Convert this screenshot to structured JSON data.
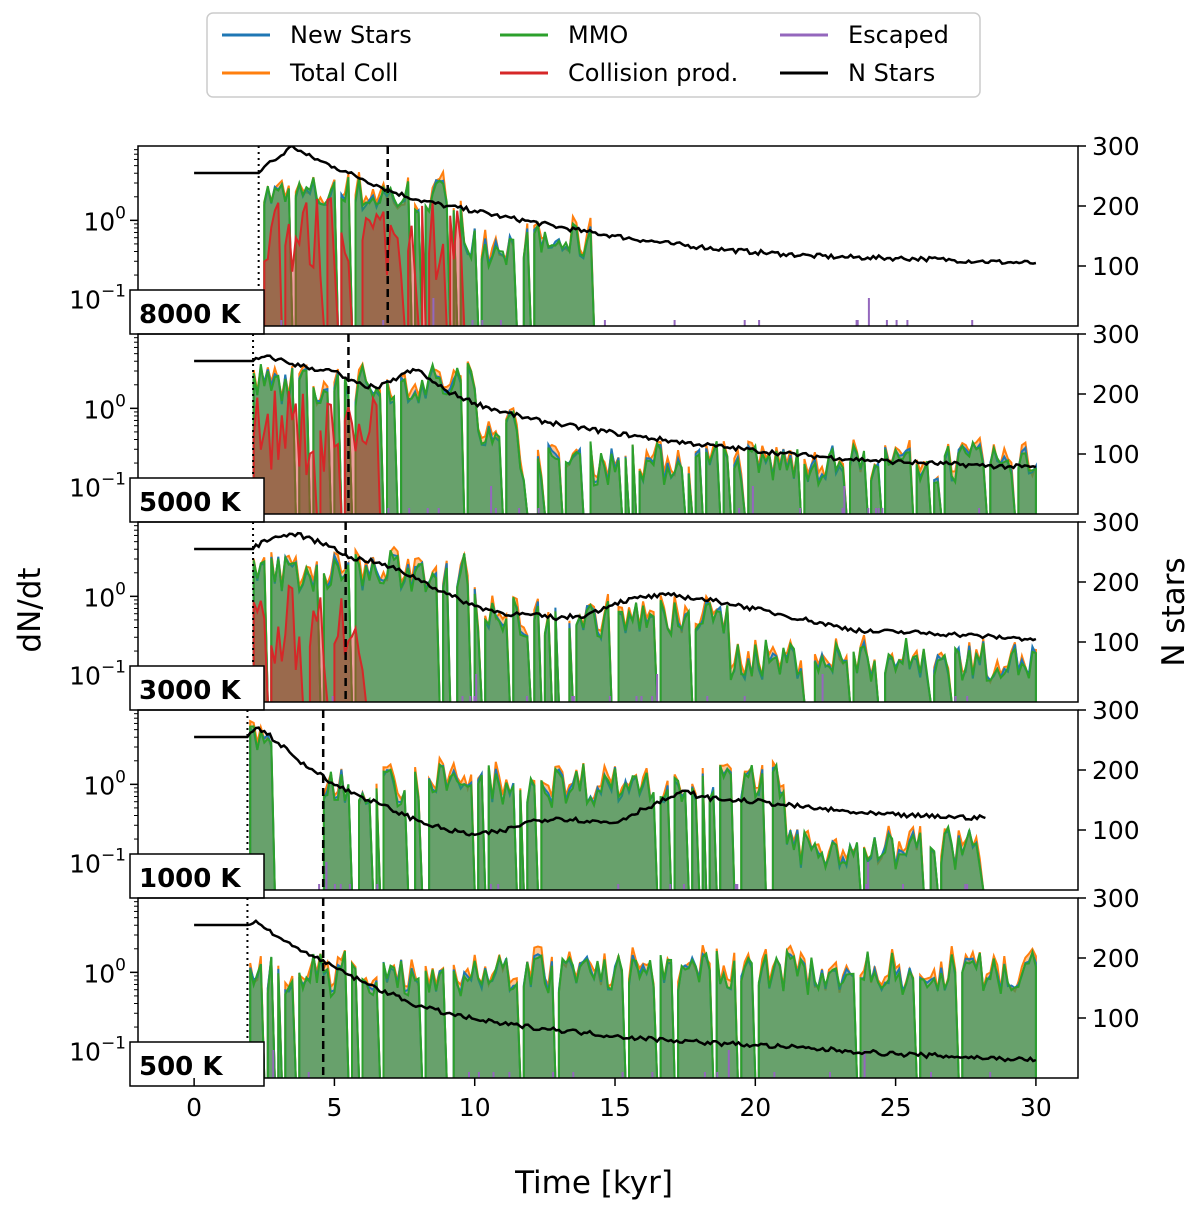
{
  "chart_data": {
    "type": "area",
    "xlabel": "Time [kyr]",
    "ylabel_left": "dN/dt",
    "ylabel_right": "N stars",
    "xlim": [
      -2,
      31.5
    ],
    "xticks": [
      0,
      5,
      10,
      15,
      20,
      25,
      30
    ],
    "left_scale": "log",
    "left_ticks": [
      "10^{-1}",
      "10^{0}"
    ],
    "right_ylim": [
      0,
      300
    ],
    "right_ticks": [
      100,
      200,
      300
    ],
    "legend": {
      "placement": "top-center, above plots",
      "entries": [
        {
          "name": "New Stars",
          "color": "#1f77b4"
        },
        {
          "name": "Total Coll",
          "color": "#ff7f0e"
        },
        {
          "name": "MMO",
          "color": "#2ca02c"
        },
        {
          "name": "Collision prod.",
          "color": "#d62728"
        },
        {
          "name": "Escaped",
          "color": "#9467bd"
        },
        {
          "name": "N Stars",
          "color": "#000000"
        }
      ]
    },
    "panels": [
      {
        "label": "8000 K",
        "t_dotted": 2.3,
        "t_dashed": 6.9,
        "n_stars": {
          "x": [
            0,
            2.3,
            2.6,
            3.0,
            3.5,
            4.0,
            4.5,
            5.0,
            5.5,
            6.0,
            6.5,
            7.0,
            8.0,
            9.0,
            10.0,
            11.0,
            12.0,
            13.0,
            14.0,
            15.0,
            16.0,
            17.0,
            18.0,
            19.0,
            20.0,
            21.0,
            22.0,
            23.0,
            24.0,
            25.0,
            26.0,
            27.0,
            28.0,
            29.0,
            30.0
          ],
          "y": [
            255,
            255,
            270,
            280,
            300,
            285,
            275,
            265,
            255,
            245,
            235,
            225,
            210,
            200,
            192,
            182,
            174,
            165,
            157,
            150,
            143,
            137,
            132,
            127,
            123,
            120,
            117,
            115,
            114,
            113,
            112,
            110,
            108,
            106,
            105
          ]
        },
        "activity": [
          {
            "start": 2.3,
            "end": 9.5,
            "level": 2.0
          },
          {
            "start": 9.5,
            "end": 14.2,
            "level": 0.5
          }
        ],
        "collision_activity": [
          {
            "start": 2.3,
            "end": 9.5,
            "level": 0.6
          }
        ]
      },
      {
        "label": "5000 K",
        "t_dotted": 2.1,
        "t_dashed": 5.5,
        "n_stars": {
          "x": [
            0,
            2.1,
            2.5,
            3.0,
            3.5,
            4.0,
            4.5,
            5.0,
            5.5,
            6.0,
            6.5,
            7.0,
            7.5,
            8.0,
            8.5,
            9.0,
            10.0,
            11.0,
            12.0,
            13.0,
            14.0,
            15.0,
            16.0,
            17.0,
            18.0,
            19.0,
            20.0,
            21.0,
            22.0,
            23.0,
            24.0,
            25.0,
            26.0,
            27.0,
            28.0,
            29.0,
            30.0
          ],
          "y": [
            255,
            255,
            262,
            258,
            250,
            245,
            240,
            238,
            222,
            215,
            210,
            220,
            235,
            240,
            220,
            205,
            185,
            170,
            158,
            150,
            142,
            135,
            128,
            122,
            116,
            111,
            106,
            101,
            97,
            93,
            90,
            87,
            85,
            83,
            81,
            79,
            78
          ]
        },
        "activity": [
          {
            "start": 2.1,
            "end": 10.0,
            "level": 2.0
          },
          {
            "start": 10.0,
            "end": 11.5,
            "level": 0.6
          },
          {
            "start": 11.5,
            "end": 30.0,
            "level": 0.2
          }
        ],
        "collision_activity": [
          {
            "start": 2.1,
            "end": 6.5,
            "level": 0.5
          }
        ]
      },
      {
        "label": "3000 K",
        "t_dotted": 2.1,
        "t_dashed": 5.4,
        "n_stars": {
          "x": [
            0,
            2.1,
            2.5,
            3.0,
            3.5,
            4.0,
            4.5,
            5.0,
            5.5,
            6.0,
            6.5,
            7.0,
            8.0,
            9.0,
            10.0,
            11.0,
            12.0,
            13.0,
            14.0,
            15.0,
            16.0,
            17.0,
            18.0,
            19.0,
            20.0,
            21.0,
            22.0,
            23.0,
            24.0,
            25.0,
            26.0,
            27.0,
            28.0,
            29.0,
            30.0
          ],
          "y": [
            255,
            255,
            270,
            275,
            280,
            275,
            265,
            258,
            240,
            238,
            232,
            225,
            205,
            180,
            160,
            148,
            145,
            140,
            145,
            165,
            175,
            178,
            172,
            165,
            155,
            145,
            135,
            125,
            117,
            117,
            115,
            113,
            110,
            107,
            105
          ]
        },
        "activity": [
          {
            "start": 2.1,
            "end": 10.0,
            "level": 2.0
          },
          {
            "start": 10.0,
            "end": 19.0,
            "level": 0.5
          },
          {
            "start": 19.0,
            "end": 30.0,
            "level": 0.15
          }
        ],
        "collision_activity": [
          {
            "start": 2.1,
            "end": 6.0,
            "level": 0.4
          }
        ]
      },
      {
        "label": "1000 K",
        "t_dotted": 1.9,
        "t_dashed": 4.6,
        "n_stars": {
          "x": [
            0,
            1.9,
            2.2,
            2.5,
            3.0,
            3.5,
            4.0,
            4.5,
            5.0,
            6.0,
            7.0,
            8.0,
            9.0,
            10.0,
            11.0,
            12.0,
            13.0,
            14.0,
            15.0,
            16.0,
            17.0,
            17.6,
            18.0,
            19.0,
            20.0,
            21.0,
            22.0,
            23.0,
            24.0,
            25.0,
            26.0,
            27.0,
            28.2
          ],
          "y": [
            255,
            255,
            270,
            265,
            245,
            225,
            205,
            195,
            175,
            155,
            135,
            115,
            100,
            92,
            98,
            115,
            120,
            115,
            112,
            135,
            155,
            165,
            155,
            150,
            148,
            142,
            137,
            132,
            127,
            125,
            123,
            122,
            120
          ]
        },
        "activity": [
          {
            "start": 1.9,
            "end": 2.8,
            "level": 3.0
          },
          {
            "start": 4.6,
            "end": 21.0,
            "level": 1.0
          },
          {
            "start": 21.0,
            "end": 28.0,
            "level": 0.15
          }
        ],
        "collision_activity": []
      },
      {
        "label": "500 K",
        "t_dotted": 1.9,
        "t_dashed": 4.6,
        "n_stars": {
          "x": [
            0,
            1.9,
            2.2,
            2.5,
            3.0,
            3.5,
            4.0,
            4.5,
            5.0,
            6.0,
            7.0,
            8.0,
            9.0,
            10.0,
            11.0,
            12.0,
            13.0,
            14.0,
            15.0,
            16.0,
            17.0,
            18.0,
            19.0,
            20.0,
            21.0,
            22.0,
            23.0,
            24.0,
            25.0,
            26.0,
            27.0,
            28.0,
            29.0,
            30.0
          ],
          "y": [
            255,
            255,
            262,
            250,
            235,
            220,
            210,
            195,
            185,
            160,
            140,
            120,
            108,
            98,
            90,
            85,
            80,
            75,
            70,
            66,
            63,
            60,
            57,
            55,
            52,
            49,
            46,
            43,
            40,
            38,
            36,
            34,
            32,
            30
          ]
        },
        "activity": [
          {
            "start": 1.9,
            "end": 30.0,
            "level": 1.0
          }
        ],
        "collision_activity": []
      }
    ]
  }
}
